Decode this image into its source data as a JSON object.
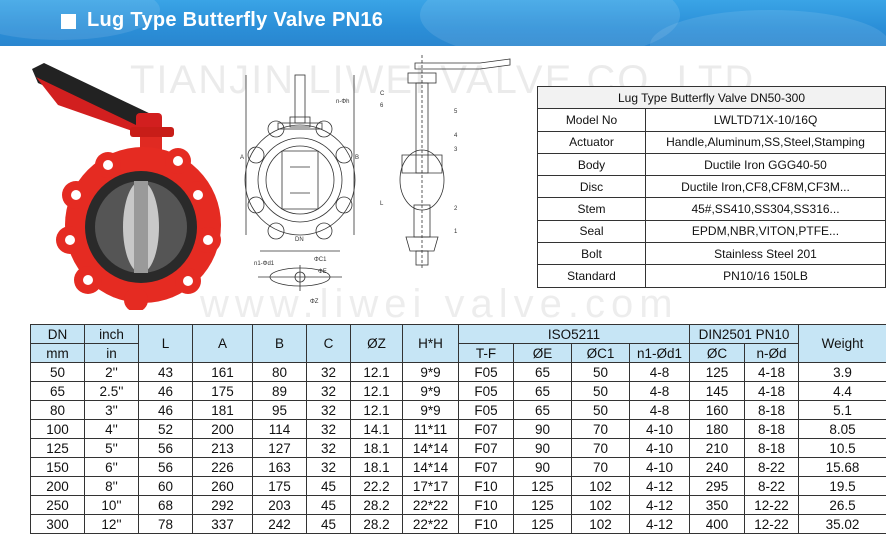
{
  "header": {
    "title": "Lug Type Butterfly Valve PN16",
    "watermark": "TIANJIN LIWEI VALVE CO.,LTD",
    "watermark_url": "www.liwei valve.com"
  },
  "drawing_labels": {
    "n_phi_h": "n-Φh",
    "n1_d1": "n1-Φd1",
    "phi_c1": "ΦC1",
    "phi_e": "ΦE",
    "phi_z": "ΦZ",
    "dn": "DN",
    "a": "A",
    "b": "B",
    "l": "L",
    "c": "C",
    "part_numbers": [
      "1",
      "2",
      "3",
      "4",
      "5",
      "6"
    ]
  },
  "spec": {
    "title": "Lug Type Butterfly Valve DN50-300",
    "rows": [
      {
        "k": "Model No",
        "v": "LWLTD71X-10/16Q"
      },
      {
        "k": "Actuator",
        "v": "Handle,Aluminum,SS,Steel,Stamping"
      },
      {
        "k": "Body",
        "v": "Ductile Iron  GGG40-50"
      },
      {
        "k": "Disc",
        "v": "Ductile Iron,CF8,CF8M,CF3M..."
      },
      {
        "k": "Stem",
        "v": "45#,SS410,SS304,SS316..."
      },
      {
        "k": "Seal",
        "v": "EPDM,NBR,VITON,PTFE..."
      },
      {
        "k": "Bolt",
        "v": "Stainless Steel 201"
      },
      {
        "k": "Standard",
        "v": "PN10/16 150LB"
      }
    ]
  },
  "dims": {
    "headers": {
      "dn": "DN",
      "mm": "mm",
      "inch": "inch",
      "in": "in",
      "l": "L",
      "a": "A",
      "b": "B",
      "c": "C",
      "z": "ØZ",
      "hh": "H*H",
      "iso": "ISO5211",
      "tf": "T-F",
      "e": "ØE",
      "c1": "ØC1",
      "n1": "n1-Ød1",
      "din": "DIN2501 PN10",
      "dc": "ØC",
      "nd": "n-Ød",
      "weight": "Weight"
    },
    "rows": [
      [
        "50",
        "2''",
        "43",
        "161",
        "80",
        "32",
        "12.1",
        "9*9",
        "F05",
        "65",
        "50",
        "4-8",
        "125",
        "4-18",
        "3.9"
      ],
      [
        "65",
        "2.5''",
        "46",
        "175",
        "89",
        "32",
        "12.1",
        "9*9",
        "F05",
        "65",
        "50",
        "4-8",
        "145",
        "4-18",
        "4.4"
      ],
      [
        "80",
        "3''",
        "46",
        "181",
        "95",
        "32",
        "12.1",
        "9*9",
        "F05",
        "65",
        "50",
        "4-8",
        "160",
        "8-18",
        "5.1"
      ],
      [
        "100",
        "4''",
        "52",
        "200",
        "114",
        "32",
        "14.1",
        "11*11",
        "F07",
        "90",
        "70",
        "4-10",
        "180",
        "8-18",
        "8.05"
      ],
      [
        "125",
        "5''",
        "56",
        "213",
        "127",
        "32",
        "18.1",
        "14*14",
        "F07",
        "90",
        "70",
        "4-10",
        "210",
        "8-18",
        "10.5"
      ],
      [
        "150",
        "6''",
        "56",
        "226",
        "163",
        "32",
        "18.1",
        "14*14",
        "F07",
        "90",
        "70",
        "4-10",
        "240",
        "8-22",
        "15.68"
      ],
      [
        "200",
        "8''",
        "60",
        "260",
        "175",
        "45",
        "22.2",
        "17*17",
        "F10",
        "125",
        "102",
        "4-12",
        "295",
        "8-22",
        "19.5"
      ],
      [
        "250",
        "10''",
        "68",
        "292",
        "203",
        "45",
        "28.2",
        "22*22",
        "F10",
        "125",
        "102",
        "4-12",
        "350",
        "12-22",
        "26.5"
      ],
      [
        "300",
        "12''",
        "78",
        "337",
        "242",
        "45",
        "28.2",
        "22*22",
        "F10",
        "125",
        "102",
        "4-12",
        "400",
        "12-22",
        "35.02"
      ]
    ]
  }
}
